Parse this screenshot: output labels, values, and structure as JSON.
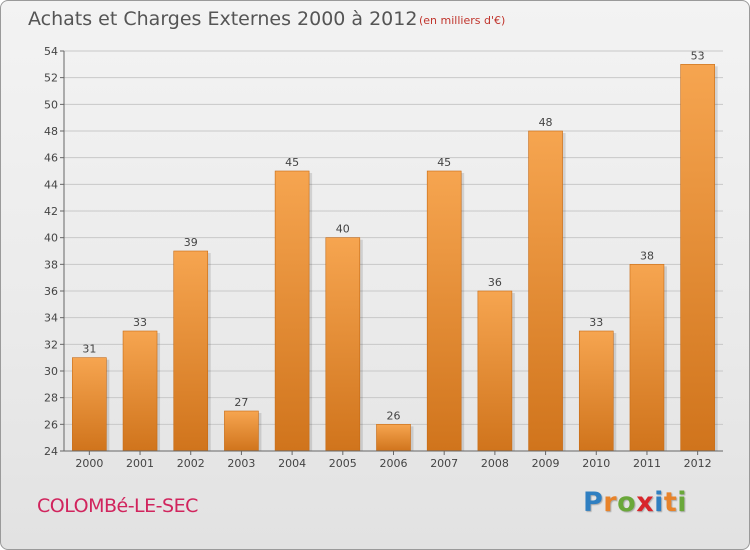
{
  "header": {
    "title": "Achats et Charges Externes 2000 à 2012",
    "subtitle": "(en milliers d'€)"
  },
  "footer": {
    "commune": "COLOMBé-LE-SEC",
    "brand_letters": [
      "P",
      "r",
      "o",
      "x",
      "i",
      "t",
      "i"
    ],
    "brand_colors": [
      "#2f7fc1",
      "#e8832a",
      "#6aa83a",
      "#d8262c",
      "#2f7fc1",
      "#e8832a",
      "#6aa83a"
    ]
  },
  "colors": {
    "bar_light": "#f6a550",
    "bar_dark": "#d0741c",
    "grid": "#c8c8c8"
  },
  "chart_data": {
    "type": "bar",
    "title": "Achats et Charges Externes 2000 à 2012",
    "subtitle": "(en milliers d'€)",
    "categories": [
      "2000",
      "2001",
      "2002",
      "2003",
      "2004",
      "2005",
      "2006",
      "2007",
      "2008",
      "2009",
      "2010",
      "2011",
      "2012"
    ],
    "values": [
      31,
      33,
      39,
      27,
      45,
      40,
      26,
      45,
      36,
      48,
      33,
      38,
      53
    ],
    "ylim": [
      24,
      54
    ],
    "ytick_step": 2,
    "grid": true,
    "data_labels": true
  }
}
